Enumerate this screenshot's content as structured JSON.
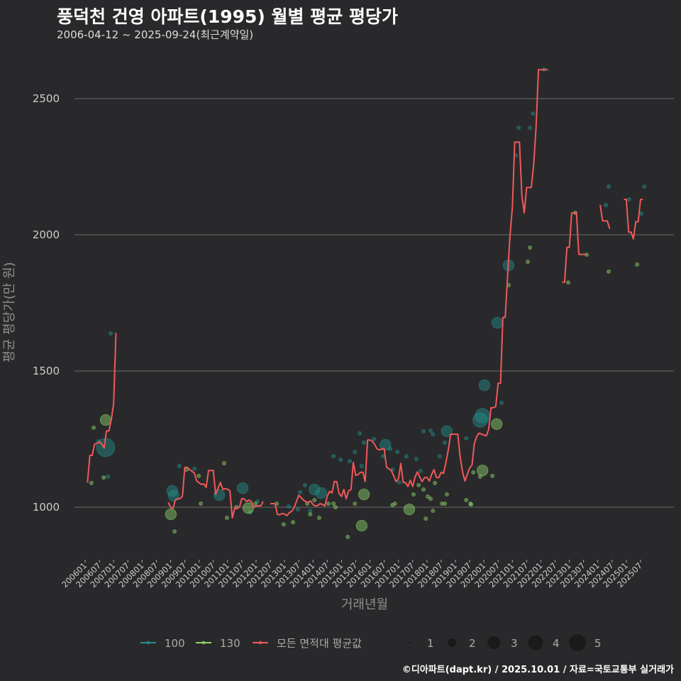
{
  "header": {
    "title": "풍덕천 건영 아파트(1995) 월별 평균 평당가",
    "subtitle": "2006-04-12 ~ 2025-09-24(최근계약일)"
  },
  "footer": "©디아파트(dapt.kr) / 2025.10.01 / 자료=국토교통부 실거래가",
  "colors": {
    "bg": "#29292b",
    "a100": "#21908c",
    "a130": "#8fd46a",
    "avg": "#f0585a",
    "grid": "#6a6a6a"
  },
  "chart_data": {
    "type": "line+scatter",
    "title": "풍덕천 건영 아파트(1995) 월별 평균 평당가",
    "xlabel": "거래년월",
    "ylabel": "평균 평당가(만 원)",
    "ylim": [
      780,
      2660
    ],
    "yticks": [
      "1000",
      "1500",
      "2000",
      "2500"
    ],
    "xticks": [
      "200601",
      "200607",
      "200701",
      "200707",
      "200801",
      "200807",
      "200901",
      "200907",
      "201001",
      "201007",
      "201101",
      "201107",
      "201201",
      "201207",
      "201301",
      "201307",
      "201401",
      "201407",
      "201501",
      "201507",
      "201601",
      "201607",
      "201701",
      "201707",
      "201801",
      "201807",
      "201901",
      "201907",
      "202001",
      "202007",
      "202101",
      "202107",
      "202201",
      "202207",
      "202301",
      "202307",
      "202401",
      "202407",
      "202501",
      "202507"
    ],
    "legend": {
      "series": [
        {
          "key": "a100",
          "label": "100"
        },
        {
          "key": "a130",
          "label": "130"
        },
        {
          "key": "avg",
          "label": "모든 면적대 평균값"
        }
      ],
      "sizes": [
        "1",
        "2",
        "3",
        "4",
        "5"
      ]
    },
    "avg_line_segments": [
      {
        "start": "2006-02",
        "values": [
          1090,
          1190,
          1190,
          1232,
          1235,
          1240,
          1232,
          1218,
          1280,
          1280,
          1320,
          1380,
          1640
        ]
      },
      {
        "start": "2008-12",
        "values": [
          1018,
          1000,
          995,
          1026,
          1031,
          1031,
          1040,
          1146,
          1146,
          1138,
          1132,
          1125,
          1096,
          1090,
          1083,
          1086,
          1073,
          1135,
          1135,
          1135,
          1047,
          1070,
          1091,
          1065,
          1068,
          1066,
          1060,
          961,
          995,
          995,
          1000,
          1031,
          1031,
          1021,
          1026,
          1021,
          1000,
          1005,
          1005,
          1005,
          1021
        ]
      },
      {
        "start": "2012-07",
        "values": [
          1013,
          1013,
          1013,
          974,
          972,
          977,
          975,
          969,
          980,
          985,
          997,
          1020,
          1044,
          1035,
          1026,
          1020,
          1018,
          1023,
          1010,
          1005,
          1006,
          1013,
          1010,
          1005,
          1040,
          1058,
          1052,
          1094,
          1094,
          1050,
          1039,
          1065,
          1031,
          1060,
          1065,
          1164,
          1117,
          1120,
          1128,
          1128,
          1094,
          1247,
          1247,
          1242,
          1230,
          1214,
          1210,
          1214,
          1214,
          1148,
          1140,
          1135,
          1115,
          1094,
          1104,
          1161,
          1091,
          1090,
          1076,
          1099,
          1076,
          1110,
          1130,
          1110,
          1094,
          1109,
          1109,
          1096,
          1120,
          1138,
          1109,
          1109,
          1128,
          1124,
          1164,
          1210,
          1268,
          1268,
          1268,
          1268,
          1185,
          1130,
          1096,
          1120,
          1144,
          1155,
          1234,
          1260,
          1272,
          1268,
          1265,
          1262,
          1285,
          1365,
          1365,
          1370,
          1455,
          1455,
          1697,
          1697,
          1850,
          1995,
          2101,
          2340,
          2340,
          2340,
          2143,
          2080,
          2174,
          2174,
          2174,
          2260,
          2396,
          2606,
          2606,
          2606,
          2606,
          2606
        ]
      },
      {
        "start": "2022-10",
        "values": [
          1826,
          1826,
          1954,
          1954,
          2080,
          2080,
          2080,
          1928,
          1928,
          1928,
          1928
        ]
      },
      {
        "start": "2024-02",
        "values": [
          2110,
          2051,
          2051,
          2051,
          2022
        ]
      },
      {
        "start": "2024-12",
        "values": [
          2130,
          2130,
          2010,
          2010,
          1985,
          2048,
          2048,
          2130,
          2130
        ]
      }
    ],
    "points_100": [
      [
        2006.47,
        1242,
        1
      ],
      [
        2006.72,
        1219,
        5
      ],
      [
        2006.8,
        1112,
        1
      ],
      [
        2006.9,
        1638,
        1
      ],
      [
        2009.06,
        1060,
        3
      ],
      [
        2009.11,
        1042,
        3
      ],
      [
        2009.31,
        1151,
        1
      ],
      [
        2009.84,
        1141,
        1
      ],
      [
        2010.71,
        1044,
        3
      ],
      [
        2011.53,
        1070,
        3
      ],
      [
        2011.8,
        982,
        1
      ],
      [
        2012.05,
        1021,
        1
      ],
      [
        2013.15,
        1003,
        1
      ],
      [
        2013.55,
        1055,
        1
      ],
      [
        2013.72,
        1081,
        1
      ],
      [
        2014.05,
        1065,
        3
      ],
      [
        2014.29,
        1052,
        3
      ],
      [
        2013.9,
        987,
        1
      ],
      [
        2013.47,
        992,
        1
      ],
      [
        2014.72,
        1187,
        1
      ],
      [
        2014.97,
        1174,
        1
      ],
      [
        2015.29,
        1169,
        1
      ],
      [
        2015.47,
        1203,
        1
      ],
      [
        2015.64,
        1271,
        1
      ],
      [
        2015.79,
        1237,
        1
      ],
      [
        2015.71,
        1151,
        1
      ],
      [
        2016.14,
        1250,
        1
      ],
      [
        2016.54,
        1229,
        3
      ],
      [
        2016.46,
        1187,
        1
      ],
      [
        2016.71,
        1214,
        1
      ],
      [
        2016.79,
        1138,
        1
      ],
      [
        2016.96,
        1203,
        1
      ],
      [
        2017.03,
        1091,
        1
      ],
      [
        2017.28,
        1187,
        1
      ],
      [
        2017.63,
        1177,
        1
      ],
      [
        2017.78,
        1133,
        1
      ],
      [
        2017.88,
        1279,
        1
      ],
      [
        2018.13,
        1281,
        1
      ],
      [
        2018.21,
        1268,
        1
      ],
      [
        2018.45,
        1187,
        1
      ],
      [
        2018.63,
        1237,
        1
      ],
      [
        2018.7,
        1279,
        3
      ],
      [
        2019.38,
        1253,
        1
      ],
      [
        2020.02,
        1448,
        3
      ],
      [
        2019.95,
        1336,
        4
      ],
      [
        2019.87,
        1320,
        4
      ],
      [
        2020.62,
        1383,
        1
      ],
      [
        2020.47,
        1677,
        3
      ],
      [
        2020.87,
        1888,
        3
      ],
      [
        2021.12,
        2292,
        1
      ],
      [
        2021.22,
        2393,
        1
      ],
      [
        2021.62,
        2393,
        1
      ],
      [
        2021.72,
        2445,
        1
      ],
      [
        2022.11,
        2607,
        1
      ],
      [
        2024.28,
        2109,
        1
      ],
      [
        2024.38,
        2177,
        1
      ],
      [
        2025.1,
        2130,
        1
      ],
      [
        2025.53,
        2078,
        1
      ],
      [
        2025.63,
        2177,
        1
      ]
    ],
    "points_130": [
      [
        2006.22,
        1089,
        1
      ],
      [
        2006.3,
        1292,
        1
      ],
      [
        2006.65,
        1109,
        1
      ],
      [
        2006.72,
        1320,
        3
      ],
      [
        2009.01,
        974,
        3
      ],
      [
        2009.14,
        911,
        1
      ],
      [
        2009.56,
        1138,
        1
      ],
      [
        2009.99,
        1115,
        1
      ],
      [
        2010.06,
        1013,
        1
      ],
      [
        2010.88,
        1161,
        1
      ],
      [
        2011.73,
        997,
        3
      ],
      [
        2010.98,
        961,
        1
      ],
      [
        2011.31,
        1000,
        1
      ],
      [
        2011.98,
        1013,
        1
      ],
      [
        2012.73,
        1013,
        1
      ],
      [
        2012.97,
        937,
        1
      ],
      [
        2013.3,
        945,
        1
      ],
      [
        2013.8,
        1013,
        1
      ],
      [
        2013.9,
        974,
        1
      ],
      [
        2014.05,
        1026,
        1
      ],
      [
        2014.22,
        961,
        1
      ],
      [
        2014.54,
        1013,
        1
      ],
      [
        2014.72,
        1013,
        1
      ],
      [
        2014.79,
        1000,
        1
      ],
      [
        2015.22,
        891,
        1
      ],
      [
        2015.47,
        1013,
        1
      ],
      [
        2015.71,
        932,
        3
      ],
      [
        2015.79,
        1047,
        3
      ],
      [
        2016.79,
        1008,
        1
      ],
      [
        2016.88,
        1013,
        1
      ],
      [
        2017.38,
        992,
        3
      ],
      [
        2017.53,
        1047,
        1
      ],
      [
        2017.71,
        1081,
        1
      ],
      [
        2017.88,
        1065,
        1
      ],
      [
        2017.96,
        958,
        1
      ],
      [
        2018.03,
        1039,
        1
      ],
      [
        2018.13,
        1031,
        1
      ],
      [
        2018.21,
        987,
        1
      ],
      [
        2018.28,
        1089,
        1
      ],
      [
        2018.53,
        1013,
        1
      ],
      [
        2018.63,
        1013,
        1
      ],
      [
        2018.7,
        1047,
        1
      ],
      [
        2019.38,
        1026,
        1
      ],
      [
        2019.53,
        1013,
        1
      ],
      [
        2019.63,
        1128,
        1
      ],
      [
        2019.87,
        1112,
        1
      ],
      [
        2020.45,
        1305,
        3
      ],
      [
        2019.95,
        1135,
        3
      ],
      [
        2020.3,
        1115,
        1
      ],
      [
        2019.55,
        1010,
        1
      ],
      [
        2020.87,
        1815,
        1
      ],
      [
        2021.54,
        1901,
        1
      ],
      [
        2021.62,
        1953,
        1
      ],
      [
        2022.96,
        1825,
        1
      ],
      [
        2023.21,
        2081,
        1
      ],
      [
        2023.61,
        1927,
        1
      ],
      [
        2024.38,
        1865,
        1
      ],
      [
        2025.38,
        1891,
        1
      ]
    ]
  }
}
